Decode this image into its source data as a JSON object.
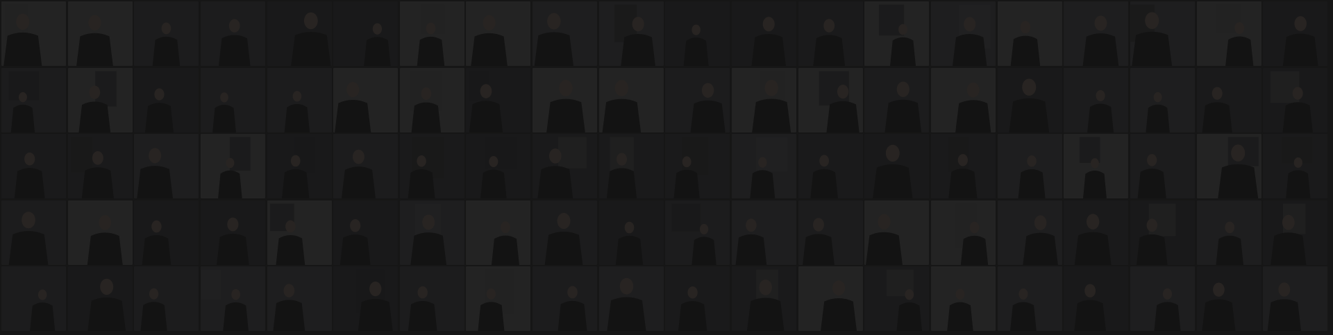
{
  "mosaic": {
    "rows": 5,
    "cols": 20,
    "tile_kind": "portrait-photo",
    "overlay_color": "#121212",
    "overlay_opacity": 0.7,
    "palette": {
      "background": "#1f1f1f",
      "tile_dark": "#2a2a2c",
      "tile_mid": "#3a3a3c",
      "tile_light": "#4a4a4a",
      "figure": "#151515",
      "skin": "#5a4e46"
    }
  }
}
